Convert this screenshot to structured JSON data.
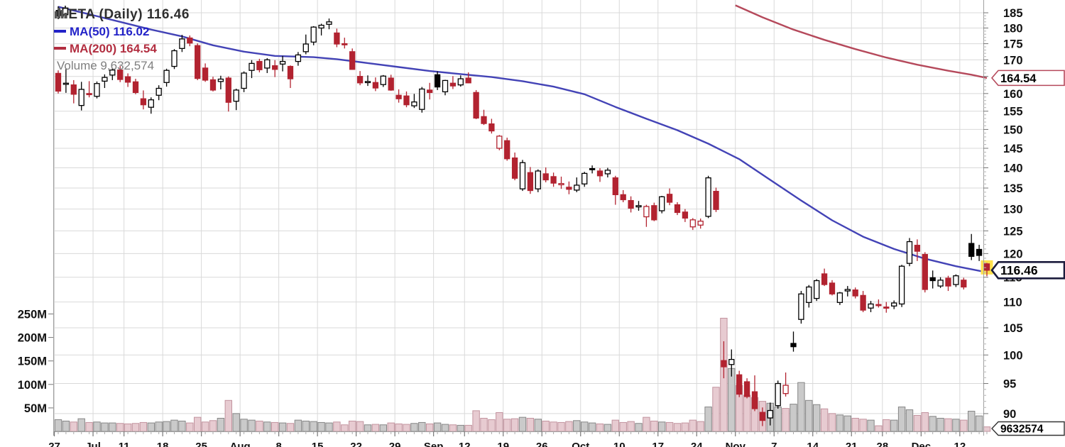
{
  "legend": {
    "title": "META (Daily) 116.46",
    "ma50_label": "MA(50) 116.02",
    "ma200_label": "MA(200) 164.54",
    "volume_label": "Volume 9,632,574"
  },
  "tags": {
    "ma200": "164.54",
    "price": "116.46",
    "volume": "9632574"
  },
  "colors": {
    "candle_red": "#b22330",
    "candle_black": "#000000",
    "ma50": "#4343b6",
    "ma200": "#b5495b",
    "vol_up_fill": "#cacaca",
    "vol_up_stroke": "#868686",
    "vol_down_fill": "#e7cbd1",
    "vol_down_stroke": "#c2939e",
    "grid": "#d9d9d9",
    "frame": "#a0a0a0",
    "tick": "#777777",
    "axis_text": "#111111",
    "highlight": "#ffe14d",
    "tag_price_border": "#1c1c3c",
    "tag_vol_border": "#333333"
  },
  "axis": {
    "price_ticks": [
      185,
      180,
      175,
      170,
      165,
      160,
      155,
      150,
      145,
      140,
      135,
      130,
      125,
      120,
      115,
      110,
      105,
      100,
      95,
      90
    ],
    "volume_ticks": [
      {
        "label": "250M",
        "v": 250
      },
      {
        "label": "200M",
        "v": 200
      },
      {
        "label": "150M",
        "v": 150
      },
      {
        "label": "100M",
        "v": 100
      },
      {
        "label": "50M",
        "v": 50
      }
    ],
    "x_labels": [
      {
        "t": "27",
        "i": 0,
        "b": 0
      },
      {
        "t": "Jul",
        "i": 5,
        "b": 1
      },
      {
        "t": "11",
        "i": 9,
        "b": 0
      },
      {
        "t": "18",
        "i": 14,
        "b": 0
      },
      {
        "t": "25",
        "i": 19,
        "b": 0
      },
      {
        "t": "Aug",
        "i": 24,
        "b": 1
      },
      {
        "t": "8",
        "i": 29,
        "b": 0
      },
      {
        "t": "15",
        "i": 34,
        "b": 0
      },
      {
        "t": "22",
        "i": 39,
        "b": 0
      },
      {
        "t": "29",
        "i": 44,
        "b": 0
      },
      {
        "t": "Sep",
        "i": 49,
        "b": 1
      },
      {
        "t": "12",
        "i": 53,
        "b": 0
      },
      {
        "t": "19",
        "i": 58,
        "b": 0
      },
      {
        "t": "26",
        "i": 63,
        "b": 0
      },
      {
        "t": "Oct",
        "i": 68,
        "b": 1
      },
      {
        "t": "10",
        "i": 73,
        "b": 0
      },
      {
        "t": "17",
        "i": 78,
        "b": 0
      },
      {
        "t": "24",
        "i": 83,
        "b": 0
      },
      {
        "t": "Nov",
        "i": 88,
        "b": 1
      },
      {
        "t": "7",
        "i": 93,
        "b": 0
      },
      {
        "t": "14",
        "i": 98,
        "b": 0
      },
      {
        "t": "21",
        "i": 103,
        "b": 0
      },
      {
        "t": "28",
        "i": 107,
        "b": 0
      },
      {
        "t": "Dec",
        "i": 112,
        "b": 1
      },
      {
        "t": "12",
        "i": 117,
        "b": 0
      }
    ]
  },
  "chart_data": {
    "type": "candlestick",
    "symbol": "META",
    "timeframe": "Daily",
    "title": "META (Daily) 116.46",
    "last_price": 116.46,
    "ma50_last": 116.02,
    "ma200_last": 164.54,
    "last_volume": 9632574,
    "log_scale": true,
    "price_axis_range": [
      88,
      187
    ],
    "volume_axis_range_millions": [
      0,
      260
    ],
    "legend_position": "top-left",
    "grid": true,
    "candles_format": [
      "date",
      "open",
      "high",
      "low",
      "close",
      "volume_millions"
    ],
    "candles": [
      [
        "Jun 27",
        165.9,
        166.8,
        160.0,
        160.7,
        25
      ],
      [
        "Jun 28",
        162.8,
        167.2,
        160.2,
        163.0,
        22
      ],
      [
        "Jun 29",
        162.5,
        163.9,
        157.2,
        159.8,
        20
      ],
      [
        "Jun 30",
        156.6,
        163.4,
        155.2,
        161.2,
        27
      ],
      [
        "Jul 1",
        160.0,
        163.6,
        158.9,
        160.0,
        19
      ],
      [
        "Jul 5",
        159.2,
        163.5,
        158.6,
        162.9,
        20
      ],
      [
        "Jul 6",
        163.6,
        165.6,
        161.6,
        164.7,
        18
      ],
      [
        "Jul 7",
        165.4,
        167.4,
        163.9,
        166.9,
        18
      ],
      [
        "Jul 8",
        166.9,
        168.1,
        163.3,
        164.1,
        17
      ],
      [
        "Jul 11",
        164.9,
        165.9,
        161.9,
        163.3,
        16
      ],
      [
        "Jul 12",
        163.4,
        164.3,
        159.8,
        160.3,
        17
      ],
      [
        "Jul 13",
        158.5,
        160.9,
        155.5,
        156.8,
        19
      ],
      [
        "Jul 14",
        156.1,
        158.9,
        154.3,
        158.2,
        18
      ],
      [
        "Jul 15",
        159.5,
        162.4,
        158.1,
        161.5,
        20
      ],
      [
        "Jul 18",
        163.2,
        167.3,
        162.0,
        166.8,
        21
      ],
      [
        "Jul 19",
        168.0,
        173.3,
        167.2,
        172.8,
        24
      ],
      [
        "Jul 20",
        173.5,
        177.8,
        172.4,
        176.5,
        22
      ],
      [
        "Jul 21",
        176.8,
        177.6,
        174.2,
        175.2,
        18
      ],
      [
        "Jul 22",
        174.4,
        175.1,
        163.9,
        164.4,
        30
      ],
      [
        "Jul 25",
        167.5,
        168.9,
        163.4,
        163.9,
        20
      ],
      [
        "Jul 26",
        164.0,
        164.9,
        160.6,
        161.0,
        23
      ],
      [
        "Jul 27",
        163.5,
        165.2,
        161.2,
        164.2,
        28
      ],
      [
        "Jul 28",
        164.5,
        165.0,
        154.9,
        157.5,
        66
      ],
      [
        "Jul 29",
        157.8,
        161.4,
        155.3,
        161.0,
        38
      ],
      [
        "Aug 1",
        161.5,
        166.5,
        160.4,
        166.0,
        26
      ],
      [
        "Aug 2",
        166.8,
        169.9,
        164.5,
        168.9,
        24
      ],
      [
        "Aug 3",
        169.5,
        170.3,
        166.2,
        167.0,
        22
      ],
      [
        "Aug 4",
        167.5,
        170.5,
        166.0,
        170.0,
        20
      ],
      [
        "Aug 5",
        168.2,
        169.9,
        164.8,
        167.1,
        19
      ],
      [
        "Aug 8",
        168.7,
        171.2,
        166.5,
        169.5,
        18
      ],
      [
        "Aug 9",
        168.0,
        168.3,
        161.6,
        164.3,
        17
      ],
      [
        "Aug 10",
        169.5,
        172.4,
        168.2,
        171.5,
        24
      ],
      [
        "Aug 11",
        172.5,
        177.9,
        171.7,
        174.9,
        22
      ],
      [
        "Aug 12",
        175.5,
        180.6,
        174.5,
        180.3,
        21
      ],
      [
        "Aug 15",
        180.0,
        181.4,
        177.6,
        180.9,
        19
      ],
      [
        "Aug 16",
        181.2,
        183.1,
        179.6,
        182.0,
        18
      ],
      [
        "Aug 17",
        178.4,
        179.8,
        173.9,
        174.9,
        20
      ],
      [
        "Aug 18",
        175.0,
        176.9,
        173.5,
        174.7,
        14
      ],
      [
        "Aug 19",
        172.5,
        173.5,
        167.0,
        167.1,
        22
      ],
      [
        "Aug 22",
        165.0,
        166.6,
        162.4,
        163.1,
        21
      ],
      [
        "Aug 23",
        163.4,
        165.3,
        162.2,
        163.5,
        14
      ],
      [
        "Aug 24",
        163.2,
        164.7,
        160.7,
        161.6,
        15
      ],
      [
        "Aug 25",
        162.6,
        165.4,
        161.9,
        165.1,
        14
      ],
      [
        "Aug 26",
        164.5,
        165.5,
        160.8,
        161.0,
        18
      ],
      [
        "Aug 29",
        159.5,
        161.2,
        157.4,
        158.5,
        16
      ],
      [
        "Aug 30",
        159.3,
        160.6,
        156.1,
        156.8,
        15
      ],
      [
        "Aug 31",
        156.5,
        159.9,
        155.9,
        157.6,
        17
      ],
      [
        "Sep 1",
        155.5,
        161.9,
        154.6,
        161.3,
        19
      ],
      [
        "Sep 2",
        161.0,
        163.1,
        158.3,
        160.3,
        16
      ],
      [
        "Sep 6",
        165.5,
        166.5,
        161.0,
        161.9,
        18
      ],
      [
        "Sep 7",
        160.5,
        164.0,
        159.5,
        163.8,
        15
      ],
      [
        "Sep 8",
        163.0,
        165.1,
        161.3,
        162.2,
        14
      ],
      [
        "Sep 9",
        162.5,
        165.3,
        162.0,
        164.3,
        13
      ],
      [
        "Sep 12",
        164.5,
        166.2,
        163.0,
        163.1,
        13
      ],
      [
        "Sep 13",
        160.3,
        161.0,
        152.8,
        153.1,
        44
      ],
      [
        "Sep 14",
        153.5,
        155.4,
        151.2,
        151.6,
        28
      ],
      [
        "Sep 15",
        151.5,
        152.9,
        148.9,
        149.6,
        25
      ],
      [
        "Sep 16",
        145.0,
        148.5,
        144.5,
        148.2,
        40
      ],
      [
        "Sep 19",
        147.0,
        147.8,
        141.8,
        142.3,
        26
      ],
      [
        "Sep 20",
        142.5,
        143.9,
        136.9,
        137.4,
        27
      ],
      [
        "Sep 21",
        134.8,
        142.0,
        134.3,
        141.3,
        30
      ],
      [
        "Sep 22",
        138.8,
        140.2,
        133.6,
        134.4,
        28
      ],
      [
        "Sep 23",
        134.8,
        139.6,
        134.0,
        139.2,
        26
      ],
      [
        "Sep 26",
        138.5,
        140.1,
        136.4,
        137.0,
        22
      ],
      [
        "Sep 27",
        137.8,
        138.8,
        135.3,
        136.2,
        20
      ],
      [
        "Sep 28",
        135.8,
        137.8,
        134.8,
        136.1,
        19
      ],
      [
        "Sep 29",
        135.2,
        136.6,
        133.5,
        134.7,
        21
      ],
      [
        "Sep 30",
        134.5,
        137.6,
        134.0,
        135.7,
        23
      ],
      [
        "Oct 3",
        136.0,
        139.0,
        135.3,
        138.6,
        20
      ],
      [
        "Oct 4",
        139.8,
        140.6,
        138.6,
        139.7,
        18
      ],
      [
        "Oct 5",
        139.2,
        139.9,
        136.5,
        138.0,
        16
      ],
      [
        "Oct 6",
        138.5,
        140.0,
        137.6,
        139.4,
        15
      ],
      [
        "Oct 7",
        137.5,
        138.0,
        131.0,
        133.4,
        24
      ],
      [
        "Oct 10",
        133.4,
        134.5,
        131.6,
        132.2,
        19
      ],
      [
        "Oct 11",
        132.0,
        133.0,
        129.2,
        130.2,
        21
      ],
      [
        "Oct 12",
        130.5,
        131.9,
        129.6,
        130.8,
        17
      ],
      [
        "Oct 13",
        128.2,
        131.0,
        125.9,
        130.6,
        30
      ],
      [
        "Oct 14",
        130.8,
        131.5,
        127.2,
        127.5,
        22
      ],
      [
        "Oct 17",
        129.6,
        133.1,
        129.0,
        132.9,
        20
      ],
      [
        "Oct 18",
        133.5,
        134.9,
        130.9,
        131.6,
        19
      ],
      [
        "Oct 19",
        131.0,
        131.6,
        128.6,
        129.2,
        17
      ],
      [
        "Oct 20",
        129.3,
        130.0,
        127.0,
        127.9,
        18
      ],
      [
        "Oct 21",
        125.9,
        127.9,
        125.2,
        127.5,
        24
      ],
      [
        "Oct 24",
        126.3,
        127.8,
        125.5,
        127.2,
        21
      ],
      [
        "Oct 25",
        128.3,
        138.0,
        127.9,
        137.5,
        52
      ],
      [
        "Oct 26",
        134.2,
        135.1,
        129.3,
        129.9,
        94
      ],
      [
        "Oct 27",
        99.0,
        102.5,
        95.9,
        97.9,
        241
      ],
      [
        "Oct 28",
        98.3,
        101.0,
        96.2,
        99.2,
        134
      ],
      [
        "Oct 31",
        96.5,
        97.2,
        92.7,
        93.2,
        98
      ],
      [
        "Nov 1",
        95.3,
        95.9,
        92.5,
        92.8,
        77
      ],
      [
        "Nov 2",
        93.6,
        96.4,
        90.4,
        90.8,
        72
      ],
      [
        "Nov 3",
        90.2,
        91.0,
        88.0,
        88.9,
        64
      ],
      [
        "Nov 4",
        89.3,
        91.8,
        88.1,
        90.5,
        60
      ],
      [
        "Nov 7",
        91.3,
        95.5,
        90.8,
        95.0,
        52
      ],
      [
        "Nov 8",
        93.3,
        96.9,
        92.8,
        94.7,
        49
      ],
      [
        "Nov 9",
        102.1,
        104.3,
        100.6,
        101.5,
        58
      ],
      [
        "Nov 10",
        106.6,
        112.2,
        105.8,
        111.6,
        104
      ],
      [
        "Nov 11",
        109.9,
        113.4,
        108.9,
        113.0,
        66
      ],
      [
        "Nov 14",
        110.7,
        114.6,
        110.2,
        114.3,
        57
      ],
      [
        "Nov 15",
        115.7,
        116.8,
        113.2,
        113.5,
        48
      ],
      [
        "Nov 16",
        113.8,
        114.4,
        111.3,
        111.6,
        38
      ],
      [
        "Nov 17",
        109.9,
        112.0,
        109.4,
        111.8,
        35
      ],
      [
        "Nov 18",
        112.2,
        113.2,
        111.1,
        112.5,
        33
      ],
      [
        "Nov 21",
        112.4,
        112.9,
        110.7,
        111.2,
        28
      ],
      [
        "Nov 22",
        111.3,
        112.2,
        108.0,
        108.4,
        26
      ],
      [
        "Nov 23",
        108.8,
        110.2,
        108.0,
        109.6,
        24
      ],
      [
        "Nov 25",
        109.5,
        110.5,
        108.9,
        109.3,
        12
      ],
      [
        "Nov 28",
        109.0,
        110.0,
        107.9,
        108.8,
        25
      ],
      [
        "Nov 29",
        109.2,
        110.3,
        108.6,
        109.8,
        24
      ],
      [
        "Nov 30",
        109.6,
        117.6,
        109.0,
        117.3,
        52
      ],
      [
        "Dec 1",
        117.9,
        123.4,
        117.3,
        122.6,
        46
      ],
      [
        "Dec 2",
        121.8,
        123.1,
        118.4,
        120.5,
        34
      ],
      [
        "Dec 5",
        119.8,
        120.3,
        111.9,
        112.5,
        40
      ],
      [
        "Dec 6",
        114.9,
        116.4,
        112.7,
        114.3,
        32
      ],
      [
        "Dec 7",
        113.2,
        115.0,
        112.8,
        114.4,
        28
      ],
      [
        "Dec 8",
        114.8,
        115.3,
        112.2,
        113.2,
        27
      ],
      [
        "Dec 9",
        113.5,
        115.6,
        113.0,
        115.3,
        26
      ],
      [
        "Dec 12",
        114.4,
        114.9,
        112.5,
        113.0,
        24
      ],
      [
        "Dec 13",
        122.2,
        124.3,
        118.6,
        119.4,
        43
      ],
      [
        "Dec 14",
        120.9,
        121.9,
        118.4,
        119.6,
        33
      ],
      [
        "Dec 15",
        117.8,
        118.0,
        115.2,
        116.46,
        9.63
      ]
    ],
    "ma50": [
      [
        0,
        187
      ],
      [
        4,
        184.5
      ],
      [
        8,
        182
      ],
      [
        12,
        179.5
      ],
      [
        16,
        177.3
      ],
      [
        20,
        174.5
      ],
      [
        24,
        172.5
      ],
      [
        28,
        171.2
      ],
      [
        33,
        170.8
      ],
      [
        36,
        170.2
      ],
      [
        40,
        169
      ],
      [
        44,
        167.8
      ],
      [
        48,
        166.6
      ],
      [
        52,
        165.7
      ],
      [
        56,
        164.8
      ],
      [
        60,
        163.6
      ],
      [
        64,
        162
      ],
      [
        68,
        159.8
      ],
      [
        72,
        156.2
      ],
      [
        76,
        152.9
      ],
      [
        80,
        149.8
      ],
      [
        84,
        146.2
      ],
      [
        88,
        142.2
      ],
      [
        92,
        137
      ],
      [
        96,
        132
      ],
      [
        100,
        127.4
      ],
      [
        104,
        123.7
      ],
      [
        108,
        121
      ],
      [
        112,
        118.9
      ],
      [
        116,
        117.3
      ],
      [
        120,
        116.02
      ]
    ],
    "ma200": [
      [
        87.5,
        187.5
      ],
      [
        91,
        183.5
      ],
      [
        95,
        179.5
      ],
      [
        99,
        176.2
      ],
      [
        103,
        173.3
      ],
      [
        107,
        170.7
      ],
      [
        111,
        168.5
      ],
      [
        115,
        166.7
      ],
      [
        118,
        165.5
      ],
      [
        120,
        164.54
      ]
    ]
  }
}
